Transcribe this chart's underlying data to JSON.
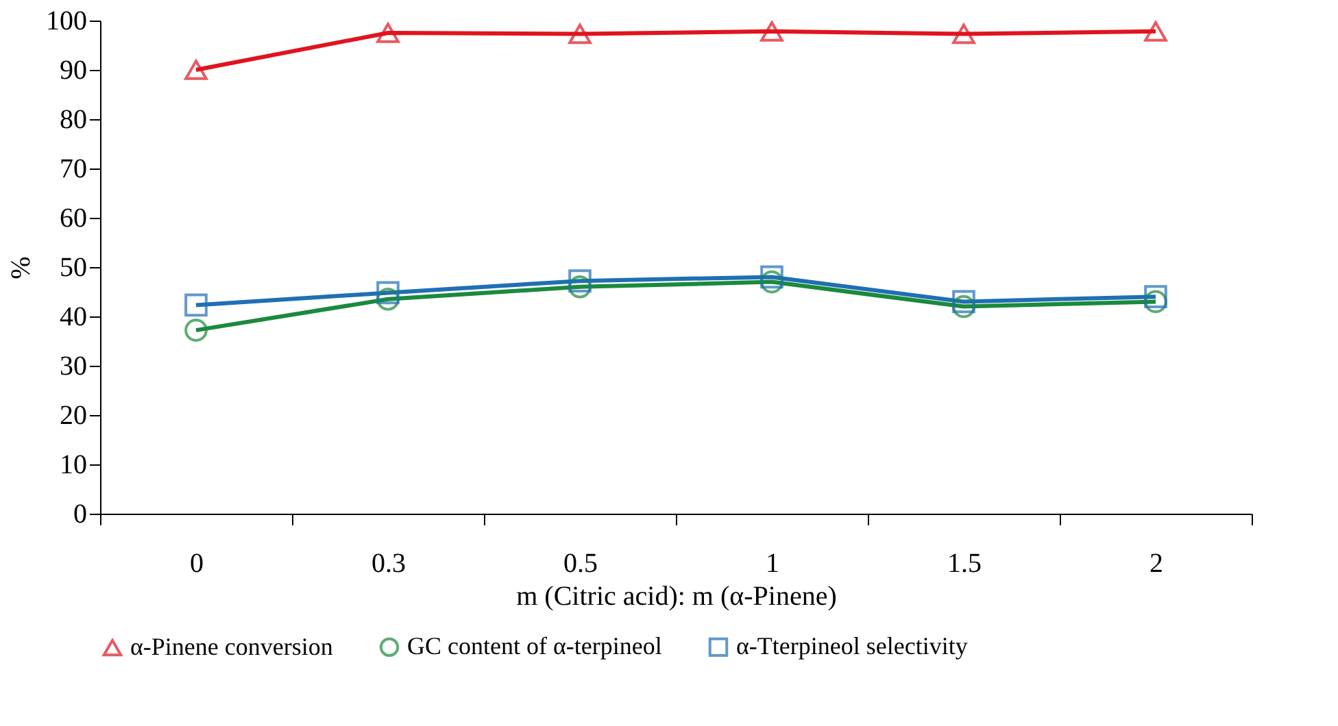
{
  "chart_data": {
    "type": "line",
    "xlabel": "m (Citric acid): m (α-Pinene)",
    "ylabel": "%",
    "categories": [
      "0",
      "0.3",
      "0.5",
      "1",
      "1.5",
      "2"
    ],
    "series": [
      {
        "name": "α-Pinene conversion",
        "color": "#e0141e",
        "marker": "triangle",
        "values": [
          90,
          97.5,
          97.3,
          97.8,
          97.3,
          97.8
        ]
      },
      {
        "name": "GC content of α-terpineol",
        "color": "#1a8a3c",
        "marker": "circle",
        "values": [
          37.2,
          43.5,
          46,
          47,
          42,
          43
        ]
      },
      {
        "name": "α-Tterpineol selectivity",
        "color": "#1f6fb4",
        "marker": "square",
        "values": [
          42.3,
          44.8,
          47.2,
          48,
          43,
          44
        ]
      }
    ],
    "ylim": [
      0,
      100
    ],
    "yticks": [
      0,
      10,
      20,
      30,
      40,
      50,
      60,
      70,
      80,
      90,
      100
    ],
    "grid": false,
    "legend": "bottom",
    "line_style": "solid"
  }
}
